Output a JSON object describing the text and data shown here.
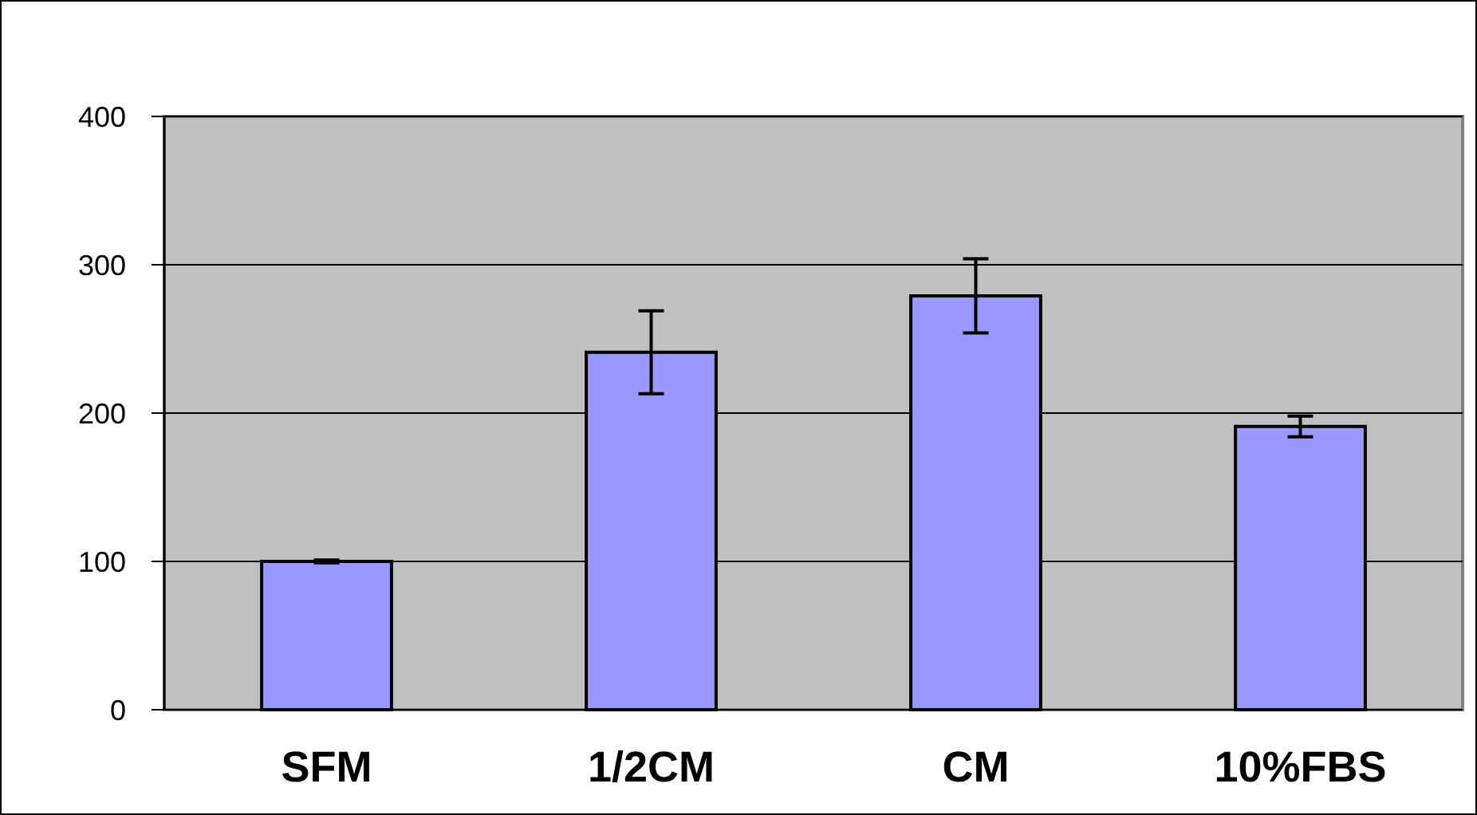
{
  "chart_data": {
    "type": "bar",
    "categories": [
      "SFM",
      "1/2CM",
      "CM",
      "10%FBS"
    ],
    "values": [
      100,
      241,
      279,
      191
    ],
    "errors": [
      1,
      28,
      25,
      7
    ],
    "color": "#9999ff",
    "ylim": [
      0,
      400
    ],
    "yticks": [
      0,
      100,
      200,
      300,
      400
    ],
    "grid": "y"
  }
}
